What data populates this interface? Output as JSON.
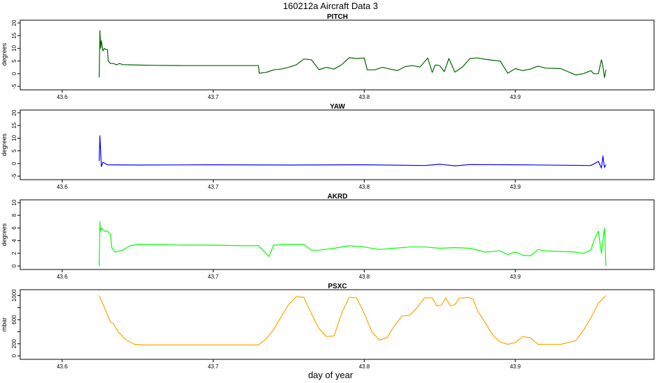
{
  "title": "160212a   Aircraft Data 3",
  "chart_data": [
    {
      "type": "line",
      "title": "PITCH",
      "ylabel": "degrees",
      "color": "#006400",
      "xlim": [
        43.575,
        43.99
      ],
      "ylim": [
        -5,
        20
      ],
      "xticks": [
        43.6,
        43.7,
        43.8,
        43.9
      ],
      "xtick_labels": [
        "43.6",
        "43.7",
        "43.8",
        "43.9"
      ],
      "yticks": [
        -5,
        0,
        5,
        10,
        15,
        20
      ],
      "ytick_labels": [
        "-5",
        "0",
        "5",
        "10",
        "15",
        "20"
      ],
      "series": [
        {
          "x": [
            43.6245,
            43.625,
            43.6255,
            43.626,
            43.627,
            43.628,
            43.629,
            43.63,
            43.6305,
            43.632,
            43.634,
            43.636,
            43.638,
            43.64,
            43.645,
            43.65,
            43.66,
            43.68,
            43.7,
            43.72,
            43.73,
            43.7305,
            43.735,
            43.74,
            43.745,
            43.75,
            43.755,
            43.76,
            43.765,
            43.77,
            43.775,
            43.78,
            43.785,
            43.79,
            43.795,
            43.8,
            43.802,
            43.807,
            43.812,
            43.817,
            43.822,
            43.827,
            43.832,
            43.837,
            43.842,
            43.845,
            43.847,
            43.85,
            43.853,
            43.856,
            43.86,
            43.865,
            43.87,
            43.875,
            43.88,
            43.885,
            43.89,
            43.895,
            43.9,
            43.905,
            43.91,
            43.915,
            43.92,
            43.93,
            43.94,
            43.945,
            43.95,
            43.952,
            43.955,
            43.957,
            43.958,
            43.959,
            43.96
          ],
          "y": [
            -1.5,
            17,
            10,
            13,
            9,
            10,
            9.5,
            9.5,
            5,
            4,
            4,
            3.5,
            4,
            3.6,
            3.5,
            3.4,
            3.3,
            3.2,
            3.2,
            3.2,
            3.2,
            0.2,
            0.5,
            1.5,
            1.8,
            2.5,
            3.5,
            5.8,
            5.5,
            1.6,
            2.5,
            1.8,
            3.5,
            6.3,
            6,
            6.2,
            1.5,
            1.5,
            2.5,
            1.8,
            1.2,
            2.8,
            3.2,
            2.6,
            6.2,
            0.5,
            3.4,
            3.2,
            0.8,
            6,
            0.6,
            2.6,
            6,
            6.2,
            5.7,
            5.3,
            5,
            0.2,
            2,
            1.2,
            1.8,
            3,
            2.2,
            2,
            -0.5,
            0,
            1.2,
            0,
            0,
            5.5,
            3,
            -1.5,
            1.5
          ]
        }
      ]
    },
    {
      "type": "line",
      "title": "YAW",
      "ylabel": "degrees",
      "color": "#0000ff",
      "xlim": [
        43.575,
        43.99
      ],
      "ylim": [
        -5,
        20
      ],
      "xticks": [
        43.6,
        43.7,
        43.8,
        43.9
      ],
      "xtick_labels": [
        "43.6",
        "43.7",
        "43.8",
        "43.9"
      ],
      "yticks": [
        -5,
        0,
        5,
        10,
        15,
        20
      ],
      "ytick_labels": [
        "-5",
        "0",
        "5",
        "10",
        "15",
        "20"
      ],
      "series": [
        {
          "x": [
            43.6245,
            43.625,
            43.626,
            43.627,
            43.63,
            43.65,
            43.7,
            43.75,
            43.8,
            43.84,
            43.85,
            43.86,
            43.87,
            43.9,
            43.95,
            43.955,
            43.957,
            43.958,
            43.959,
            43.96
          ],
          "y": [
            1,
            11,
            -1.2,
            0.5,
            -0.5,
            -0.6,
            -0.5,
            -0.6,
            -0.5,
            -0.8,
            -0.3,
            -0.9,
            -0.4,
            -0.5,
            -0.8,
            0.8,
            -1.8,
            3,
            -1.5,
            -0.5
          ]
        }
      ]
    },
    {
      "type": "line",
      "title": "AKRD",
      "ylabel": "degrees",
      "color": "#00ff00",
      "xlim": [
        43.575,
        43.99
      ],
      "ylim": [
        0,
        10
      ],
      "xticks": [
        43.6,
        43.7,
        43.8,
        43.9
      ],
      "xtick_labels": [
        "43.6",
        "43.7",
        "43.8",
        "43.9"
      ],
      "yticks": [
        0,
        2,
        4,
        6,
        8,
        10
      ],
      "ytick_labels": [
        "0",
        "2",
        "4",
        "6",
        "8",
        "10"
      ],
      "series": [
        {
          "x": [
            43.6245,
            43.625,
            43.6253,
            43.626,
            43.628,
            43.63,
            43.632,
            43.633,
            43.635,
            43.64,
            43.645,
            43.65,
            43.66,
            43.68,
            43.7,
            43.72,
            43.73,
            43.735,
            43.737,
            43.74,
            43.75,
            43.76,
            43.765,
            43.77,
            43.78,
            43.79,
            43.8,
            43.81,
            43.82,
            43.83,
            43.84,
            43.85,
            43.86,
            43.87,
            43.88,
            43.89,
            43.895,
            43.9,
            43.905,
            43.91,
            43.915,
            43.92,
            43.93,
            43.94,
            43.945,
            43.95,
            43.952,
            43.955,
            43.957,
            43.959,
            43.96
          ],
          "y": [
            0,
            7,
            5.5,
            6,
            5.5,
            5.5,
            5,
            2.8,
            2.2,
            2.5,
            3.2,
            3.4,
            3.4,
            3.3,
            3.3,
            3.2,
            3.2,
            2,
            1.5,
            3.3,
            3.4,
            3.4,
            2.5,
            2.5,
            2.8,
            3.2,
            3,
            2.6,
            2.8,
            3,
            3,
            2.8,
            2.9,
            2.8,
            2.2,
            2.4,
            1.8,
            2.2,
            1.7,
            1.6,
            2.6,
            2.4,
            2.3,
            2.2,
            2,
            2.5,
            4,
            5.5,
            2,
            6,
            0
          ]
        }
      ]
    },
    {
      "type": "line",
      "title": "PSXC",
      "ylabel": "mbar",
      "color": "#ffa500",
      "xlim": [
        43.575,
        43.99
      ],
      "ylim": [
        0,
        1050
      ],
      "xticks": [
        43.6,
        43.7,
        43.8,
        43.9
      ],
      "xtick_labels": [
        "43.6",
        "43.7",
        "43.8",
        "43.9"
      ],
      "yticks": [
        0,
        200,
        400,
        600,
        800,
        1000
      ],
      "ytick_labels": [
        "0",
        "200",
        "",
        "600",
        "",
        "1000"
      ],
      "series": [
        {
          "x": [
            43.6245,
            43.628,
            43.632,
            43.634,
            43.637,
            43.642,
            43.648,
            43.655,
            43.7,
            43.72,
            43.73,
            43.735,
            43.74,
            43.745,
            43.75,
            43.755,
            43.76,
            43.765,
            43.77,
            43.775,
            43.78,
            43.785,
            43.79,
            43.795,
            43.8,
            43.805,
            43.81,
            43.815,
            43.82,
            43.825,
            43.83,
            43.835,
            43.84,
            43.845,
            43.848,
            43.851,
            43.854,
            43.857,
            43.86,
            43.863,
            43.866,
            43.869,
            43.872,
            43.875,
            43.88,
            43.885,
            43.89,
            43.895,
            43.9,
            43.905,
            43.91,
            43.915,
            43.92,
            43.925,
            43.93,
            43.94,
            43.945,
            43.95,
            43.955,
            43.96
          ],
          "y": [
            1000,
            800,
            560,
            530,
            400,
            270,
            190,
            180,
            180,
            180,
            180,
            280,
            430,
            650,
            850,
            980,
            970,
            700,
            450,
            320,
            330,
            700,
            970,
            960,
            700,
            400,
            260,
            300,
            500,
            660,
            670,
            800,
            960,
            960,
            830,
            840,
            960,
            830,
            850,
            960,
            960,
            970,
            940,
            750,
            550,
            350,
            230,
            190,
            220,
            320,
            300,
            190,
            190,
            190,
            190,
            250,
            420,
            630,
            870,
            1000
          ]
        }
      ]
    }
  ],
  "xlabel": "day of year"
}
